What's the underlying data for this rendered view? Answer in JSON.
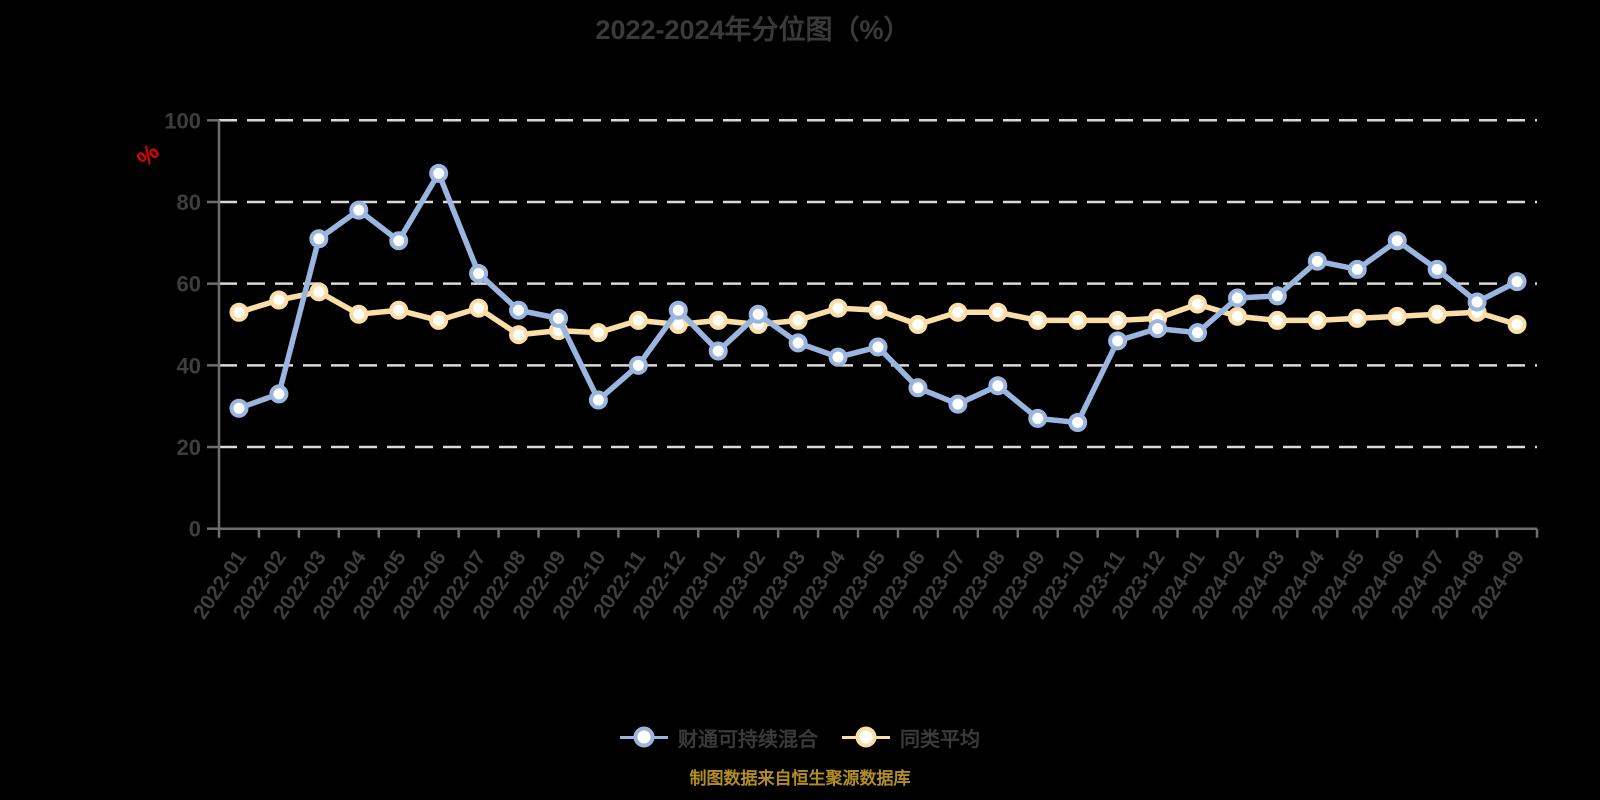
{
  "title": "2022-2024年分位图（%）",
  "y_axis_unit": "%",
  "caption": "制图数据来自恒生聚源数据库",
  "colors": {
    "background": "#000000",
    "title": "#3a3a3a",
    "axis_label": "#3e3e3e",
    "axis_line": "#6e6e6e",
    "gridline": "#d9d9d9",
    "unit_label": "#e60000",
    "caption": "#b28e22",
    "series_fund": "#9ab6e0",
    "series_average": "#fbdea6",
    "marker_fill": "#ffffff"
  },
  "chart_data": {
    "type": "line",
    "title": "2022-2024年分位图（%）",
    "ylabel": "%",
    "ylim": [
      0,
      100
    ],
    "yticks": [
      0,
      20,
      40,
      60,
      80,
      100
    ],
    "grid": "horizontal-dashed",
    "legend_position": "bottom",
    "x": [
      "2022-01",
      "2022-02",
      "2022-03",
      "2022-04",
      "2022-05",
      "2022-06",
      "2022-07",
      "2022-08",
      "2022-09",
      "2022-10",
      "2022-11",
      "2022-12",
      "2023-01",
      "2023-02",
      "2023-03",
      "2023-04",
      "2023-05",
      "2023-06",
      "2023-07",
      "2023-08",
      "2023-09",
      "2023-10",
      "2023-11",
      "2023-12",
      "2024-01",
      "2024-02",
      "2024-03",
      "2024-04",
      "2024-05",
      "2024-06",
      "2024-07",
      "2024-08",
      "2024-09"
    ],
    "series": [
      {
        "name": "财通可持续混合",
        "color": "#9ab6e0",
        "values": [
          29.5,
          33,
          71,
          78,
          70.5,
          87,
          62.5,
          53.5,
          51.5,
          31.5,
          40,
          53.5,
          43.5,
          52.5,
          45.5,
          42,
          44.5,
          34.5,
          30.5,
          35,
          27,
          26,
          46,
          49,
          48,
          56.5,
          57,
          65.5,
          63.5,
          70.5,
          63.5,
          55.5,
          60.5
        ]
      },
      {
        "name": "同类平均",
        "color": "#fbdea6",
        "values": [
          53,
          56,
          58,
          52.5,
          53.5,
          51,
          54,
          47.5,
          48.5,
          48,
          51,
          50,
          51,
          50,
          51,
          54,
          53.5,
          50,
          53,
          53,
          51,
          51,
          51,
          51.5,
          55,
          52,
          51,
          51,
          51.5,
          52,
          52.5,
          53,
          50
        ]
      }
    ]
  }
}
